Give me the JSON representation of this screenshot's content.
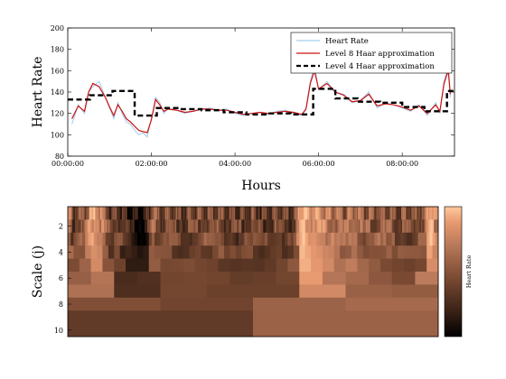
{
  "chart_data": [
    {
      "type": "line",
      "ylabel": "Heart Rate",
      "xlabel": "Hours",
      "ylim": [
        80,
        200
      ],
      "xlim_hours": [
        0,
        9.25
      ],
      "y_ticks": [
        80,
        100,
        120,
        140,
        160,
        180,
        200
      ],
      "x_ticks": [
        {
          "value": 0,
          "label": "00:00:00"
        },
        {
          "value": 2,
          "label": "02:00:00"
        },
        {
          "value": 4,
          "label": "04:00:00"
        },
        {
          "value": 6,
          "label": "06:00:00"
        },
        {
          "value": 8,
          "label": "08:00:00"
        }
      ],
      "legend_position": "top-right",
      "series": [
        {
          "name": "Heart Rate",
          "color": "#8fc3ea",
          "style": "solid-thin",
          "x": [
            0.1,
            0.25,
            0.4,
            0.5,
            0.6,
            0.75,
            0.9,
            1.0,
            1.1,
            1.2,
            1.3,
            1.4,
            1.5,
            1.6,
            1.7,
            1.8,
            1.9,
            2.0,
            2.1,
            2.2,
            2.3,
            2.4,
            2.6,
            2.8,
            3.0,
            3.2,
            3.4,
            3.6,
            3.8,
            4.0,
            4.2,
            4.4,
            4.6,
            4.8,
            5.0,
            5.2,
            5.4,
            5.6,
            5.7,
            5.8,
            5.9,
            6.0,
            6.2,
            6.4,
            6.6,
            6.8,
            7.0,
            7.2,
            7.4,
            7.6,
            7.8,
            8.0,
            8.2,
            8.4,
            8.6,
            8.8,
            8.9,
            9.0,
            9.1,
            9.15
          ],
          "values": [
            110,
            128,
            120,
            140,
            145,
            150,
            135,
            125,
            115,
            130,
            120,
            112,
            110,
            104,
            100,
            102,
            98,
            115,
            135,
            130,
            120,
            125,
            123,
            120,
            122,
            124,
            125,
            123,
            124,
            120,
            118,
            120,
            121,
            119,
            122,
            123,
            120,
            118,
            125,
            150,
            165,
            142,
            150,
            140,
            138,
            130,
            132,
            140,
            125,
            130,
            128,
            125,
            122,
            128,
            118,
            130,
            120,
            150,
            165,
            135
          ]
        },
        {
          "name": "Level 8 Haar approximation",
          "color": "#cc1111",
          "style": "solid",
          "x": [
            0.1,
            0.25,
            0.4,
            0.5,
            0.6,
            0.75,
            0.9,
            1.0,
            1.1,
            1.2,
            1.3,
            1.4,
            1.5,
            1.6,
            1.7,
            1.8,
            1.9,
            2.0,
            2.1,
            2.2,
            2.3,
            2.4,
            2.6,
            2.8,
            3.0,
            3.2,
            3.4,
            3.6,
            3.8,
            4.0,
            4.2,
            4.4,
            4.6,
            4.8,
            5.0,
            5.2,
            5.4,
            5.6,
            5.7,
            5.8,
            5.9,
            6.0,
            6.2,
            6.4,
            6.6,
            6.8,
            7.0,
            7.2,
            7.4,
            7.6,
            7.8,
            8.0,
            8.2,
            8.4,
            8.6,
            8.8,
            8.9,
            9.0,
            9.1,
            9.15
          ],
          "values": [
            115,
            127,
            122,
            140,
            148,
            145,
            135,
            126,
            118,
            128,
            122,
            115,
            112,
            108,
            104,
            103,
            102,
            114,
            133,
            128,
            122,
            124,
            123,
            121,
            122,
            124,
            124,
            123,
            123,
            121,
            119,
            120,
            121,
            120,
            121,
            122,
            121,
            119,
            124,
            148,
            160,
            143,
            148,
            140,
            137,
            131,
            132,
            138,
            127,
            129,
            128,
            126,
            123,
            127,
            120,
            128,
            122,
            148,
            160,
            138
          ]
        },
        {
          "name": "Level 4 Haar approximation",
          "color": "#000000",
          "style": "dashed",
          "x": [
            0,
            0.53,
            1.07,
            1.6,
            2.13,
            2.67,
            3.2,
            3.73,
            4.27,
            4.8,
            5.33,
            5.87,
            6.4,
            6.93,
            7.47,
            8.0,
            8.53,
            9.07,
            9.25
          ],
          "values": [
            133,
            137,
            141,
            118,
            125,
            124,
            123,
            121,
            119,
            120,
            119,
            143,
            134,
            131,
            130,
            126,
            122,
            141,
            141
          ]
        }
      ]
    },
    {
      "type": "heatmap",
      "ylabel": "Scale (j)",
      "y_ticks": [
        2,
        4,
        6,
        8,
        10
      ],
      "rows": 10,
      "colorbar_label": "Heart Rate",
      "colormap": [
        "#000000",
        "#3a2217",
        "#7a4a32",
        "#b8785a",
        "#e89a70",
        "#ffc89c"
      ]
    }
  ]
}
